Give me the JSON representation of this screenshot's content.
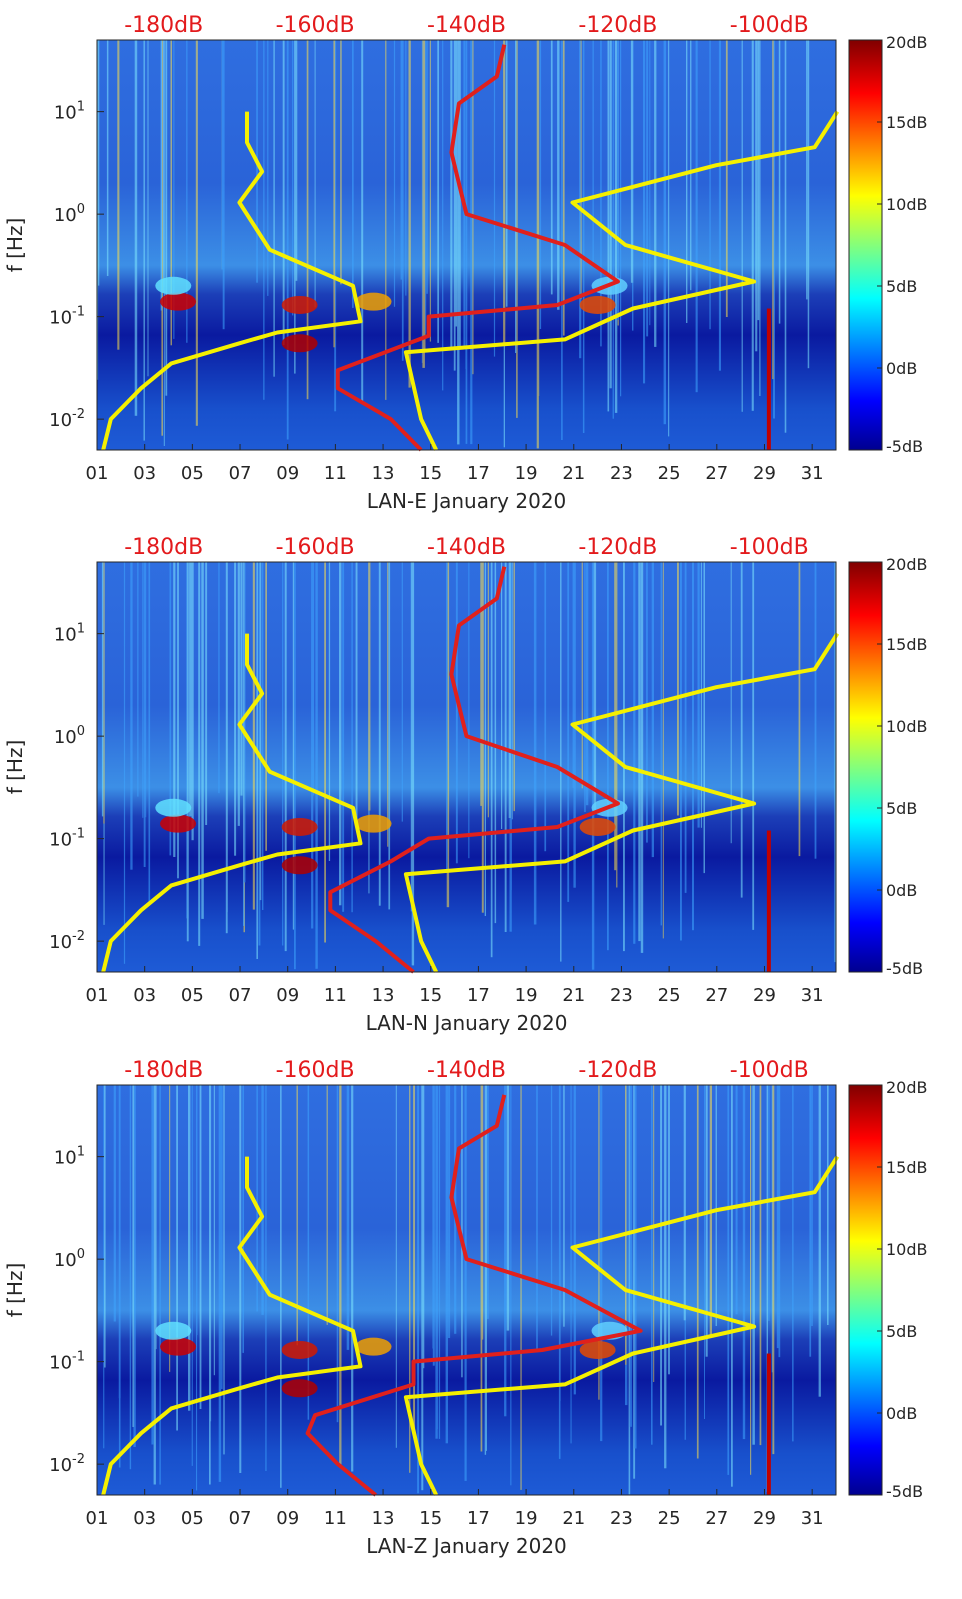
{
  "colors": {
    "background_low": "#00008f",
    "field": "#1e5bd6",
    "yellow_curve": "#f5f000",
    "red_curve": "#e0201c",
    "top_axis_text": "#e31a1c",
    "axis_text": "#262626"
  },
  "chart_data": [
    {
      "type": "heatmap",
      "component": "LAN-E",
      "xlabel": "LAN-E January 2020",
      "ylabel": "f [Hz]",
      "x_range_days": [
        1,
        32
      ],
      "y_range_hz": [
        0.005,
        50
      ],
      "y_scale": "log",
      "x_tick_labels": [
        "01",
        "03",
        "05",
        "07",
        "09",
        "11",
        "13",
        "15",
        "17",
        "19",
        "21",
        "23",
        "25",
        "27",
        "29",
        "31"
      ],
      "y_tick_labels": [
        "10^-2",
        "10^-1",
        "10^0",
        "10^1"
      ],
      "top_axis_labels": [
        "-180dB",
        "-160dB",
        "-140dB",
        "-120dB",
        "-100dB"
      ],
      "top_axis_values_db": [
        -180,
        -160,
        -140,
        -120,
        -100
      ],
      "colorbar": {
        "ticks": [
          "-5dB",
          "0dB",
          "5dB",
          "10dB",
          "15dB",
          "20dB"
        ],
        "range_db": [
          -5,
          20
        ]
      },
      "series": [
        {
          "name": "yellow-low-noise-model",
          "x_db": [
            -188,
            -187,
            -183,
            -179,
            -170,
            -165,
            -154,
            -155,
            -166,
            -170,
            -167,
            -169,
            -169
          ],
          "f_hz": [
            0.005,
            0.01,
            0.02,
            0.035,
            0.055,
            0.07,
            0.09,
            0.2,
            0.45,
            1.3,
            2.6,
            5,
            10
          ]
        },
        {
          "name": "yellow-high-noise-model",
          "x_db": [
            -144,
            -146,
            -148,
            -127,
            -118,
            -102,
            -119,
            -126,
            -107,
            -94,
            -91
          ],
          "f_hz": [
            0.005,
            0.01,
            0.045,
            0.06,
            0.12,
            0.22,
            0.5,
            1.3,
            3,
            4.5,
            10
          ]
        },
        {
          "name": "red-median-psd",
          "x_db": [
            -146,
            -150,
            -157,
            -157,
            -145,
            -145,
            -128,
            -120,
            -127,
            -140,
            -141,
            -142,
            -141,
            -136,
            -135
          ],
          "f_hz": [
            0.005,
            0.01,
            0.02,
            0.03,
            0.065,
            0.1,
            0.13,
            0.22,
            0.5,
            1,
            2,
            4,
            12,
            22,
            45
          ]
        }
      ]
    },
    {
      "type": "heatmap",
      "component": "LAN-N",
      "xlabel": "LAN-N January 2020",
      "ylabel": "f [Hz]",
      "x_range_days": [
        1,
        32
      ],
      "y_range_hz": [
        0.005,
        50
      ],
      "y_scale": "log",
      "x_tick_labels": [
        "01",
        "03",
        "05",
        "07",
        "09",
        "11",
        "13",
        "15",
        "17",
        "19",
        "21",
        "23",
        "25",
        "27",
        "29",
        "31"
      ],
      "y_tick_labels": [
        "10^-2",
        "10^-1",
        "10^0",
        "10^1"
      ],
      "top_axis_labels": [
        "-180dB",
        "-160dB",
        "-140dB",
        "-120dB",
        "-100dB"
      ],
      "top_axis_values_db": [
        -180,
        -160,
        -140,
        -120,
        -100
      ],
      "colorbar": {
        "ticks": [
          "-5dB",
          "0dB",
          "5dB",
          "10dB",
          "15dB",
          "20dB"
        ],
        "range_db": [
          -5,
          20
        ]
      },
      "series": [
        {
          "name": "yellow-low-noise-model",
          "x_db": [
            -188,
            -187,
            -183,
            -179,
            -170,
            -165,
            -154,
            -155,
            -166,
            -170,
            -167,
            -169,
            -169
          ],
          "f_hz": [
            0.005,
            0.01,
            0.02,
            0.035,
            0.055,
            0.07,
            0.09,
            0.2,
            0.45,
            1.3,
            2.6,
            5,
            10
          ]
        },
        {
          "name": "yellow-high-noise-model",
          "x_db": [
            -144,
            -146,
            -148,
            -127,
            -118,
            -102,
            -119,
            -126,
            -107,
            -94,
            -91
          ],
          "f_hz": [
            0.005,
            0.01,
            0.045,
            0.06,
            0.12,
            0.22,
            0.5,
            1.3,
            3,
            4.5,
            10
          ]
        },
        {
          "name": "red-median-psd",
          "x_db": [
            -147,
            -152,
            -158,
            -158,
            -150,
            -145,
            -128,
            -120,
            -128,
            -140,
            -141,
            -142,
            -141,
            -136,
            -135
          ],
          "f_hz": [
            0.005,
            0.01,
            0.02,
            0.03,
            0.06,
            0.1,
            0.13,
            0.22,
            0.5,
            1,
            2,
            4,
            12,
            22,
            45
          ]
        }
      ]
    },
    {
      "type": "heatmap",
      "component": "LAN-Z",
      "xlabel": "LAN-Z January 2020",
      "ylabel": "f [Hz]",
      "x_range_days": [
        1,
        32
      ],
      "y_range_hz": [
        0.005,
        50
      ],
      "y_scale": "log",
      "x_tick_labels": [
        "01",
        "03",
        "05",
        "07",
        "09",
        "11",
        "13",
        "15",
        "17",
        "19",
        "21",
        "23",
        "25",
        "27",
        "29",
        "31"
      ],
      "y_tick_labels": [
        "10^-2",
        "10^-1",
        "10^0",
        "10^1"
      ],
      "top_axis_labels": [
        "-180dB",
        "-160dB",
        "-140dB",
        "-120dB",
        "-100dB"
      ],
      "top_axis_values_db": [
        -180,
        -160,
        -140,
        -120,
        -100
      ],
      "colorbar": {
        "ticks": [
          "-5dB",
          "0dB",
          "5dB",
          "10dB",
          "15dB",
          "20dB"
        ],
        "range_db": [
          -5,
          20
        ]
      },
      "series": [
        {
          "name": "yellow-low-noise-model",
          "x_db": [
            -188,
            -187,
            -183,
            -179,
            -170,
            -165,
            -154,
            -155,
            -166,
            -170,
            -167,
            -169,
            -169
          ],
          "f_hz": [
            0.005,
            0.01,
            0.02,
            0.035,
            0.055,
            0.07,
            0.09,
            0.2,
            0.45,
            1.3,
            2.6,
            5,
            10
          ]
        },
        {
          "name": "yellow-high-noise-model",
          "x_db": [
            -144,
            -146,
            -148,
            -127,
            -118,
            -102,
            -119,
            -126,
            -107,
            -94,
            -91
          ],
          "f_hz": [
            0.005,
            0.01,
            0.045,
            0.06,
            0.12,
            0.22,
            0.5,
            1.3,
            3,
            4.5,
            10
          ]
        },
        {
          "name": "red-median-psd",
          "x_db": [
            -152,
            -157,
            -161,
            -160,
            -147,
            -147,
            -130,
            -117,
            -127,
            -140,
            -141,
            -142,
            -141,
            -136,
            -135
          ],
          "f_hz": [
            0.005,
            0.01,
            0.02,
            0.03,
            0.06,
            0.1,
            0.13,
            0.2,
            0.5,
            1,
            2,
            4,
            12,
            20,
            40
          ]
        }
      ]
    }
  ]
}
